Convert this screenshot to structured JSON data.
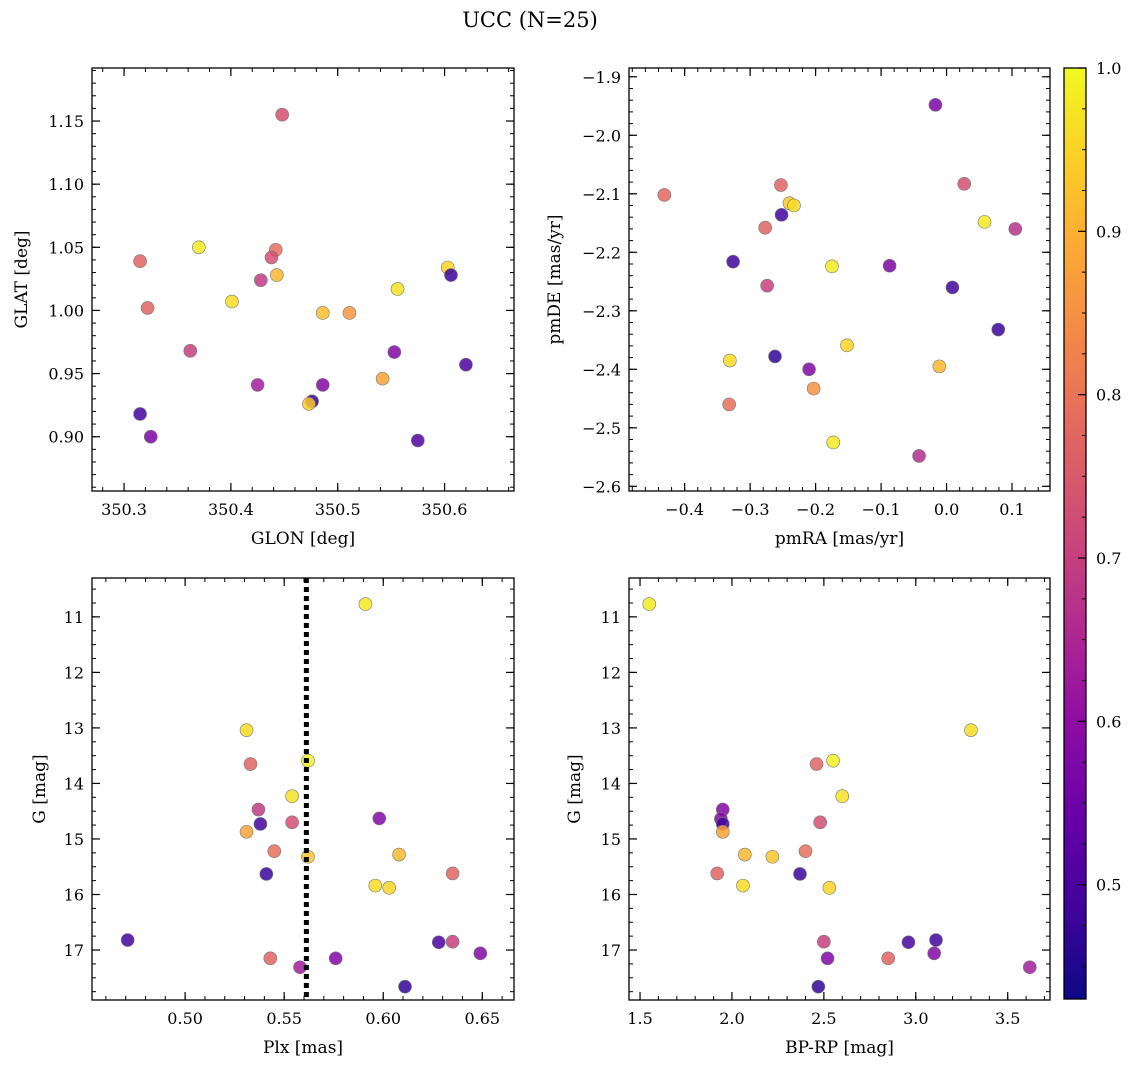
{
  "figure": {
    "title": "UCC (N=25)"
  },
  "colorbar": {
    "colormap": "plasma",
    "range": [
      0.43,
      1.0
    ],
    "ticks": [
      0.5,
      0.6,
      0.7,
      0.8,
      0.9,
      1.0
    ],
    "tick_labels": [
      "0.5",
      "0.6",
      "0.7",
      "0.8",
      "0.9",
      "1.0"
    ]
  },
  "chart_data": [
    {
      "type": "scatter",
      "xlabel": "GLON [deg]",
      "ylabel": "GLAT [deg]",
      "xlim": [
        350.27,
        350.665
      ],
      "ylim": [
        0.857,
        1.192
      ],
      "y_inverted": false,
      "xticks": [
        350.3,
        350.4,
        350.5,
        350.6
      ],
      "xtick_labels": [
        "350.3",
        "350.4",
        "350.5",
        "350.6"
      ],
      "yticks": [
        0.9,
        0.95,
        1.0,
        1.05,
        1.1,
        1.15
      ],
      "ytick_labels": [
        "0.90",
        "0.95",
        "1.00",
        "1.05",
        "1.10",
        "1.15"
      ],
      "points": [
        {
          "x": 350.448,
          "y": 1.155,
          "c": 0.73
        },
        {
          "x": 350.315,
          "y": 1.039,
          "c": 0.77
        },
        {
          "x": 350.37,
          "y": 1.05,
          "c": 0.98
        },
        {
          "x": 350.442,
          "y": 1.048,
          "c": 0.79
        },
        {
          "x": 350.438,
          "y": 1.042,
          "c": 0.73
        },
        {
          "x": 350.443,
          "y": 1.028,
          "c": 0.91
        },
        {
          "x": 350.428,
          "y": 1.024,
          "c": 0.69
        },
        {
          "x": 350.603,
          "y": 1.034,
          "c": 0.95
        },
        {
          "x": 350.606,
          "y": 1.028,
          "c": 0.48
        },
        {
          "x": 350.556,
          "y": 1.017,
          "c": 0.97
        },
        {
          "x": 350.401,
          "y": 1.007,
          "c": 0.96
        },
        {
          "x": 350.322,
          "y": 1.002,
          "c": 0.77
        },
        {
          "x": 350.486,
          "y": 0.998,
          "c": 0.92
        },
        {
          "x": 350.511,
          "y": 0.998,
          "c": 0.86
        },
        {
          "x": 350.362,
          "y": 0.968,
          "c": 0.7
        },
        {
          "x": 350.553,
          "y": 0.967,
          "c": 0.58
        },
        {
          "x": 350.62,
          "y": 0.957,
          "c": 0.5
        },
        {
          "x": 350.542,
          "y": 0.946,
          "c": 0.88
        },
        {
          "x": 350.425,
          "y": 0.941,
          "c": 0.63
        },
        {
          "x": 350.486,
          "y": 0.941,
          "c": 0.58
        },
        {
          "x": 350.476,
          "y": 0.928,
          "c": 0.47
        },
        {
          "x": 350.473,
          "y": 0.926,
          "c": 0.93
        },
        {
          "x": 350.315,
          "y": 0.918,
          "c": 0.49
        },
        {
          "x": 350.325,
          "y": 0.9,
          "c": 0.57
        },
        {
          "x": 350.575,
          "y": 0.897,
          "c": 0.51
        }
      ]
    },
    {
      "type": "scatter",
      "xlabel": "pmRA [mas/yr]",
      "ylabel": "pmDE [mas/yr]",
      "xlim": [
        -0.485,
        0.158
      ],
      "ylim": [
        -2.608,
        -1.885
      ],
      "y_inverted": false,
      "xticks": [
        -0.4,
        -0.3,
        -0.2,
        -0.1,
        0.0,
        0.1
      ],
      "xtick_labels": [
        "−0.4",
        "−0.3",
        "−0.2",
        "−0.1",
        "0.0",
        "0.1"
      ],
      "yticks": [
        -2.6,
        -2.5,
        -2.4,
        -2.3,
        -2.2,
        -2.1,
        -2.0,
        -1.9
      ],
      "ytick_labels": [
        "−2.6",
        "−2.5",
        "−2.4",
        "−2.3",
        "−2.2",
        "−2.1",
        "−2.0",
        "−1.9"
      ],
      "points": [
        {
          "x": -0.017,
          "y": -1.948,
          "c": 0.57
        },
        {
          "x": -0.431,
          "y": -2.102,
          "c": 0.78
        },
        {
          "x": -0.253,
          "y": -2.085,
          "c": 0.77
        },
        {
          "x": 0.027,
          "y": -2.083,
          "c": 0.73
        },
        {
          "x": -0.24,
          "y": -2.116,
          "c": 0.93
        },
        {
          "x": -0.233,
          "y": -2.12,
          "c": 0.96
        },
        {
          "x": -0.252,
          "y": -2.136,
          "c": 0.49
        },
        {
          "x": 0.058,
          "y": -2.148,
          "c": 0.98
        },
        {
          "x": -0.277,
          "y": -2.158,
          "c": 0.77
        },
        {
          "x": 0.105,
          "y": -2.16,
          "c": 0.67
        },
        {
          "x": -0.326,
          "y": -2.216,
          "c": 0.49
        },
        {
          "x": -0.175,
          "y": -2.224,
          "c": 0.98
        },
        {
          "x": -0.087,
          "y": -2.223,
          "c": 0.57
        },
        {
          "x": -0.274,
          "y": -2.257,
          "c": 0.7
        },
        {
          "x": 0.009,
          "y": -2.26,
          "c": 0.49
        },
        {
          "x": 0.079,
          "y": -2.332,
          "c": 0.48
        },
        {
          "x": -0.152,
          "y": -2.359,
          "c": 0.95
        },
        {
          "x": -0.331,
          "y": -2.385,
          "c": 0.96
        },
        {
          "x": -0.262,
          "y": -2.378,
          "c": 0.47
        },
        {
          "x": -0.011,
          "y": -2.395,
          "c": 0.91
        },
        {
          "x": -0.21,
          "y": -2.4,
          "c": 0.58
        },
        {
          "x": -0.203,
          "y": -2.433,
          "c": 0.85
        },
        {
          "x": -0.332,
          "y": -2.46,
          "c": 0.79
        },
        {
          "x": -0.173,
          "y": -2.525,
          "c": 0.98
        },
        {
          "x": -0.042,
          "y": -2.548,
          "c": 0.66
        }
      ]
    },
    {
      "type": "scatter",
      "xlabel": "Plx [mas]",
      "ylabel": "G [mag]",
      "xlim": [
        0.453,
        0.666
      ],
      "ylim": [
        10.3,
        17.9
      ],
      "y_inverted": true,
      "xticks": [
        0.5,
        0.55,
        0.6,
        0.65
      ],
      "xtick_labels": [
        "0.50",
        "0.55",
        "0.60",
        "0.65"
      ],
      "yticks": [
        11,
        12,
        13,
        14,
        15,
        16,
        17
      ],
      "ytick_labels": [
        "11",
        "12",
        "13",
        "14",
        "15",
        "16",
        "17"
      ],
      "vline": 0.5612,
      "points": [
        {
          "x": 0.591,
          "y": 10.77,
          "c": 0.98
        },
        {
          "x": 0.531,
          "y": 13.04,
          "c": 0.96
        },
        {
          "x": 0.533,
          "y": 13.65,
          "c": 0.77
        },
        {
          "x": 0.562,
          "y": 13.59,
          "c": 0.99
        },
        {
          "x": 0.554,
          "y": 14.23,
          "c": 0.97
        },
        {
          "x": 0.537,
          "y": 14.47,
          "c": 0.69
        },
        {
          "x": 0.538,
          "y": 14.73,
          "c": 0.49
        },
        {
          "x": 0.554,
          "y": 14.7,
          "c": 0.73
        },
        {
          "x": 0.598,
          "y": 14.63,
          "c": 0.58
        },
        {
          "x": 0.531,
          "y": 14.87,
          "c": 0.88
        },
        {
          "x": 0.545,
          "y": 15.22,
          "c": 0.79
        },
        {
          "x": 0.562,
          "y": 15.32,
          "c": 0.93
        },
        {
          "x": 0.608,
          "y": 15.28,
          "c": 0.91
        },
        {
          "x": 0.541,
          "y": 15.63,
          "c": 0.48
        },
        {
          "x": 0.635,
          "y": 15.62,
          "c": 0.77
        },
        {
          "x": 0.596,
          "y": 15.84,
          "c": 0.96
        },
        {
          "x": 0.603,
          "y": 15.88,
          "c": 0.95
        },
        {
          "x": 0.471,
          "y": 16.82,
          "c": 0.49
        },
        {
          "x": 0.628,
          "y": 16.86,
          "c": 0.5
        },
        {
          "x": 0.635,
          "y": 16.85,
          "c": 0.7
        },
        {
          "x": 0.649,
          "y": 17.06,
          "c": 0.58
        },
        {
          "x": 0.543,
          "y": 17.15,
          "c": 0.77
        },
        {
          "x": 0.576,
          "y": 17.15,
          "c": 0.58
        },
        {
          "x": 0.558,
          "y": 17.31,
          "c": 0.63
        },
        {
          "x": 0.611,
          "y": 17.66,
          "c": 0.47
        }
      ]
    },
    {
      "type": "scatter",
      "xlabel": "BP-RP [mag]",
      "ylabel": "G [mag]",
      "xlim": [
        1.44,
        3.73
      ],
      "ylim": [
        10.3,
        17.9
      ],
      "y_inverted": true,
      "xticks": [
        1.5,
        2.0,
        2.5,
        3.0,
        3.5
      ],
      "xtick_labels": [
        "1.5",
        "2.0",
        "2.5",
        "3.0",
        "3.5"
      ],
      "yticks": [
        11,
        12,
        13,
        14,
        15,
        16,
        17
      ],
      "ytick_labels": [
        "11",
        "12",
        "13",
        "14",
        "15",
        "16",
        "17"
      ],
      "points": [
        {
          "x": 1.55,
          "y": 10.77,
          "c": 0.98
        },
        {
          "x": 3.3,
          "y": 13.04,
          "c": 0.96
        },
        {
          "x": 2.46,
          "y": 13.65,
          "c": 0.77
        },
        {
          "x": 2.55,
          "y": 13.59,
          "c": 0.99
        },
        {
          "x": 2.6,
          "y": 14.23,
          "c": 0.97
        },
        {
          "x": 1.95,
          "y": 14.47,
          "c": 0.58
        },
        {
          "x": 1.94,
          "y": 14.64,
          "c": 0.58
        },
        {
          "x": 1.95,
          "y": 14.73,
          "c": 0.49
        },
        {
          "x": 2.48,
          "y": 14.7,
          "c": 0.73
        },
        {
          "x": 1.95,
          "y": 14.87,
          "c": 0.88
        },
        {
          "x": 2.07,
          "y": 15.28,
          "c": 0.91
        },
        {
          "x": 2.22,
          "y": 15.32,
          "c": 0.93
        },
        {
          "x": 2.4,
          "y": 15.22,
          "c": 0.79
        },
        {
          "x": 1.92,
          "y": 15.62,
          "c": 0.77
        },
        {
          "x": 2.37,
          "y": 15.63,
          "c": 0.48
        },
        {
          "x": 2.06,
          "y": 15.84,
          "c": 0.96
        },
        {
          "x": 2.53,
          "y": 15.88,
          "c": 0.95
        },
        {
          "x": 2.5,
          "y": 16.85,
          "c": 0.7
        },
        {
          "x": 2.96,
          "y": 16.86,
          "c": 0.5
        },
        {
          "x": 3.11,
          "y": 16.82,
          "c": 0.49
        },
        {
          "x": 3.1,
          "y": 17.06,
          "c": 0.58
        },
        {
          "x": 2.85,
          "y": 17.15,
          "c": 0.77
        },
        {
          "x": 2.52,
          "y": 17.15,
          "c": 0.58
        },
        {
          "x": 3.62,
          "y": 17.31,
          "c": 0.63
        },
        {
          "x": 2.47,
          "y": 17.66,
          "c": 0.47
        }
      ]
    }
  ]
}
